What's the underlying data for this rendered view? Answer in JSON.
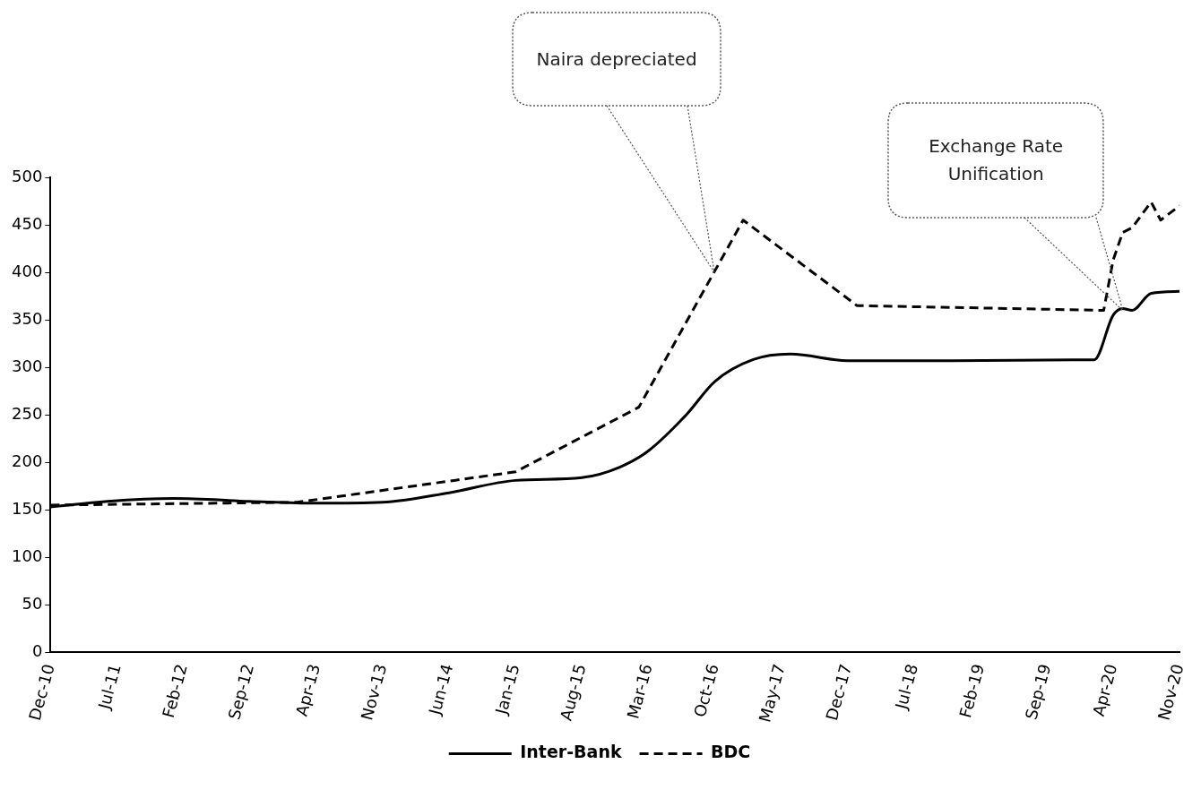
{
  "chart_data": {
    "type": "line",
    "series": [
      {
        "name": "Inter-Bank",
        "color": "#000000",
        "line_style": "solid",
        "x": [
          "2010-12",
          "2011-06",
          "2012-01",
          "2012-09",
          "2013-04",
          "2013-11",
          "2014-06",
          "2015-01",
          "2015-08",
          "2015-12",
          "2016-03",
          "2016-07",
          "2016-10",
          "2017-02",
          "2017-06",
          "2017-12",
          "2018-11",
          "2019-12",
          "2020-02",
          "2020-04",
          "2020-05",
          "2020-06",
          "2020-08",
          "2020-11"
        ],
        "values": [
          153,
          159,
          162,
          159,
          157,
          158,
          168,
          181,
          184,
          195,
          212,
          250,
          285,
          308,
          314,
          307,
          307,
          308,
          308,
          355,
          362,
          360,
          378,
          380
        ]
      },
      {
        "name": "BDC",
        "color": "#000000",
        "line_style": "dashed",
        "x": [
          "2010-12",
          "2013-02",
          "2015-01",
          "2016-02",
          "2017-01",
          "2018-01",
          "2020-03",
          "2020-04",
          "2020-05",
          "2020-06",
          "2020-08",
          "2020-09",
          "2020-11"
        ],
        "values": [
          155,
          158,
          190,
          258,
          455,
          365,
          360,
          413,
          442,
          447,
          474,
          455,
          470
        ]
      }
    ],
    "xlim": [
      "2010-12",
      "2020-11"
    ],
    "xticks": [
      {
        "value": "2010-12",
        "label": "Dec-10"
      },
      {
        "value": "2011-07",
        "label": "Jul-11"
      },
      {
        "value": "2012-02",
        "label": "Feb-12"
      },
      {
        "value": "2012-09",
        "label": "Sep-12"
      },
      {
        "value": "2013-04",
        "label": "Apr-13"
      },
      {
        "value": "2013-11",
        "label": "Nov-13"
      },
      {
        "value": "2014-06",
        "label": "Jun-14"
      },
      {
        "value": "2015-01",
        "label": "Jan-15"
      },
      {
        "value": "2015-08",
        "label": "Aug-15"
      },
      {
        "value": "2016-03",
        "label": "Mar-16"
      },
      {
        "value": "2016-10",
        "label": "Oct-16"
      },
      {
        "value": "2017-05",
        "label": "May-17"
      },
      {
        "value": "2017-12",
        "label": "Dec-17"
      },
      {
        "value": "2018-07",
        "label": "Jul-18"
      },
      {
        "value": "2019-02",
        "label": "Feb-19"
      },
      {
        "value": "2019-09",
        "label": "Sep-19"
      },
      {
        "value": "2020-04",
        "label": "Apr-20"
      },
      {
        "value": "2020-11",
        "label": "Nov-20"
      }
    ],
    "ylim": [
      0,
      500
    ],
    "yticks": [
      0,
      50,
      100,
      150,
      200,
      250,
      300,
      350,
      400,
      450,
      500
    ],
    "grid": false,
    "legend": "bottom",
    "marker": "none",
    "annotations": [
      "Naira depreciated",
      "Exchange Rate Unification"
    ]
  }
}
